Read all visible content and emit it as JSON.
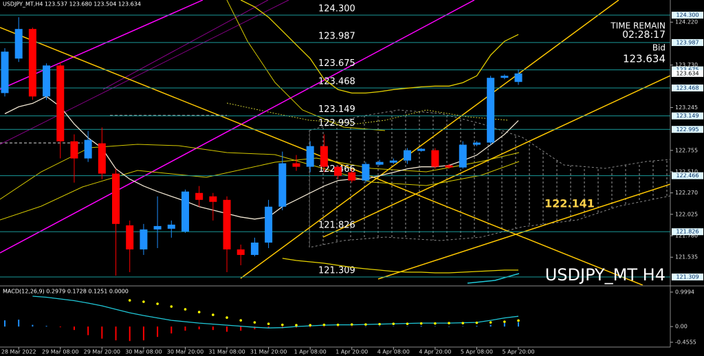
{
  "chart_data": {
    "type": "candlestick",
    "header": "USDJPY_MT,H4  123.537 123.680 123.504 123.634",
    "watermark": "USDJPY_MT H4",
    "time_remain_label": "TIME REMAIN",
    "time_remain": "02:28:17",
    "bid_label": "Bid",
    "bid": 123.634,
    "up_color": "#1e90ff",
    "down_color": "#ff0000",
    "open": [
      123.41,
      123.804,
      124.142,
      123.371,
      123.725,
      122.859,
      122.663,
      122.836,
      122.49,
      121.899,
      121.624,
      121.852,
      121.86,
      121.828,
      122.269,
      122.23,
      122.19,
      121.624,
      121.561,
      121.702,
      122.112,
      122.608,
      122.568,
      122.804,
      122.568,
      122.505,
      122.411,
      122.592,
      122.615,
      122.639,
      122.749,
      122.757,
      122.584,
      122.56,
      122.82,
      122.844,
      123.584,
      123.537
    ],
    "high": [
      123.922,
      124.276,
      124.158,
      123.749,
      123.765,
      122.938,
      122.977,
      123.017,
      122.545,
      121.954,
      121.915,
      122.23,
      121.954,
      122.308,
      122.348,
      122.269,
      122.23,
      121.679,
      121.758,
      122.19,
      122.741,
      122.702,
      122.859,
      122.938,
      122.584,
      122.545,
      122.623,
      122.647,
      122.663,
      122.781,
      122.781,
      122.781,
      122.6,
      122.859,
      122.859,
      123.607,
      123.623,
      123.68
    ],
    "low": [
      123.371,
      123.765,
      123.332,
      123.332,
      122.663,
      122.387,
      122.623,
      122.427,
      121.325,
      121.364,
      121.561,
      121.639,
      121.758,
      121.813,
      122.112,
      121.954,
      121.364,
      121.443,
      121.545,
      121.639,
      122.072,
      122.521,
      122.505,
      122.505,
      122.427,
      122.387,
      122.387,
      122.584,
      122.6,
      122.6,
      122.741,
      122.545,
      122.545,
      122.545,
      122.804,
      122.82,
      123.568,
      123.504
    ],
    "close": [
      123.883,
      124.142,
      123.371,
      123.725,
      122.859,
      122.663,
      122.875,
      122.49,
      121.915,
      121.624,
      121.852,
      121.891,
      121.907,
      122.285,
      122.19,
      122.167,
      121.624,
      121.561,
      121.702,
      122.112,
      122.608,
      122.568,
      122.804,
      122.568,
      122.466,
      122.411,
      122.6,
      122.623,
      122.639,
      122.757,
      122.773,
      122.568,
      122.56,
      122.82,
      122.844,
      123.584,
      123.607,
      123.634
    ],
    "ylim": [
      121.215,
      124.473
    ],
    "yticks": [
      {
        "value": 124.22,
        "label": "124.220"
      },
      {
        "value": 123.73,
        "label": "123.730"
      },
      {
        "value": 123.245,
        "label": "123.245"
      },
      {
        "value": 122.755,
        "label": "122.755"
      },
      {
        "value": 122.51,
        "label": "122.510"
      },
      {
        "value": 122.27,
        "label": "122.270"
      },
      {
        "value": 122.025,
        "label": "122.025"
      },
      {
        "value": 121.78,
        "label": "121.780"
      },
      {
        "value": 121.535,
        "label": "121.535"
      }
    ],
    "xticks": [
      {
        "value": 1,
        "label": "28 Mar 2022"
      },
      {
        "value": 4,
        "label": "29 Mar 08:00"
      },
      {
        "value": 7,
        "label": "29 Mar 20:00"
      },
      {
        "value": 10,
        "label": "30 Mar 08:00"
      },
      {
        "value": 13,
        "label": "30 Mar 20:00"
      },
      {
        "value": 16,
        "label": "31 Mar 08:00"
      },
      {
        "value": 19,
        "label": "31 Mar 20:00"
      },
      {
        "value": 22,
        "label": "1 Apr 08:00"
      },
      {
        "value": 25,
        "label": "1 Apr 20:00"
      },
      {
        "value": 28,
        "label": "4 Apr 08:00"
      },
      {
        "value": 31,
        "label": "4 Apr 20:00"
      },
      {
        "value": 34,
        "label": "5 Apr 08:00"
      },
      {
        "value": 37,
        "label": "5 Apr 20:00"
      }
    ],
    "levels": [
      {
        "value": 124.3,
        "label": "124.300"
      },
      {
        "value": 123.987,
        "label": "123.987"
      },
      {
        "value": 123.675,
        "label": "123.675"
      },
      {
        "value": 123.468,
        "label": "123.468"
      },
      {
        "value": 123.149,
        "label": "123.149"
      },
      {
        "value": 122.995,
        "label": "122.995"
      },
      {
        "value": 122.466,
        "label": "122.466"
      },
      {
        "value": 121.826,
        "label": "121.826"
      },
      {
        "value": 121.309,
        "label": "121.309"
      }
    ],
    "level_color": "#1a9a9a",
    "target": 122.141,
    "target_color": "#ffd24a",
    "overlays": [
      {
        "color": "#f0e6d2",
        "values": [
          123.174,
          123.253,
          123.292,
          123.371,
          123.253,
          123.056,
          122.899,
          122.781,
          122.545,
          122.427,
          122.348,
          122.285,
          122.23,
          122.175,
          122.112,
          122.072,
          122.033,
          121.994,
          121.97,
          121.994,
          122.112,
          122.19,
          122.269,
          122.348,
          122.411,
          122.427,
          122.427,
          122.466,
          122.505,
          122.545,
          122.568,
          122.568,
          122.584,
          122.639,
          122.702,
          122.82,
          122.938,
          123.096
        ]
      },
      {
        "color": "#e6d200",
        "values": [
          null,
          null,
          null,
          null,
          null,
          null,
          null,
          null,
          null,
          null,
          null,
          null,
          null,
          null,
          null,
          null,
          null,
          124.473,
          124.394,
          124.276,
          124.119,
          123.961,
          123.804,
          123.568,
          123.45,
          123.41,
          123.41,
          123.426,
          123.45,
          123.466,
          123.481,
          123.489,
          123.489,
          123.529,
          123.607,
          123.843,
          124.001,
          124.079
        ]
      },
      {
        "color": "#e6d200",
        "values": [
          null,
          null,
          null,
          null,
          null,
          null,
          null,
          null,
          null,
          null,
          null,
          null,
          null,
          null,
          null,
          null,
          null,
          null,
          null,
          null,
          121.522,
          121.498,
          121.482,
          121.466,
          121.443,
          121.419,
          121.403,
          121.388,
          121.372,
          121.364,
          121.364,
          121.356,
          121.356,
          121.364,
          121.372,
          121.38,
          121.388,
          121.388
        ]
      }
    ],
    "macd": {
      "title": "MACD(12,26,9) 0.2979 0.1728 0.1251 0.0000",
      "ylim": [
        -0.595,
        1.179
      ],
      "yticks": [
        0.9994,
        {
          "value": 0,
          "label": "0.00"
        },
        -0.4555
      ],
      "histogram": [
        0.18,
        0.2,
        0.05,
        0.02,
        -0.02,
        -0.1,
        -0.25,
        -0.35,
        -0.4,
        -0.42,
        -0.4,
        -0.3,
        -0.2,
        -0.12,
        -0.08,
        -0.1,
        -0.15,
        -0.12,
        -0.08,
        -0.05,
        -0.05,
        -0.03,
        -0.02,
        -0.01,
        -0.01,
        -0.01,
        0.0,
        0.01,
        0.01,
        0.01,
        0.02,
        0.01,
        0.0,
        0.01,
        0.02,
        0.05,
        0.1,
        0.1251
      ],
      "line": [
        null,
        null,
        0.88,
        0.85,
        0.8,
        0.75,
        0.68,
        0.6,
        0.5,
        0.4,
        0.32,
        0.25,
        0.18,
        0.14,
        0.1,
        0.07,
        0.04,
        0.01,
        -0.02,
        -0.04,
        -0.03,
        0.0,
        0.02,
        0.04,
        0.05,
        0.05,
        0.06,
        0.07,
        0.08,
        0.09,
        0.1,
        0.1,
        0.1,
        0.11,
        0.12,
        0.18,
        0.25,
        0.2979
      ],
      "line_color": "#20c8d8",
      "signal": [
        null,
        null,
        null,
        null,
        null,
        null,
        null,
        null,
        null,
        0.76,
        0.72,
        0.66,
        0.58,
        0.5,
        0.42,
        0.34,
        0.26,
        0.18,
        0.12,
        0.08,
        0.05,
        0.04,
        0.04,
        0.05,
        0.05,
        0.06,
        0.06,
        0.07,
        0.08,
        0.08,
        0.09,
        0.09,
        0.1,
        0.1,
        0.11,
        0.12,
        0.14,
        0.1728
      ],
      "signal_color": "#ffff00"
    }
  }
}
